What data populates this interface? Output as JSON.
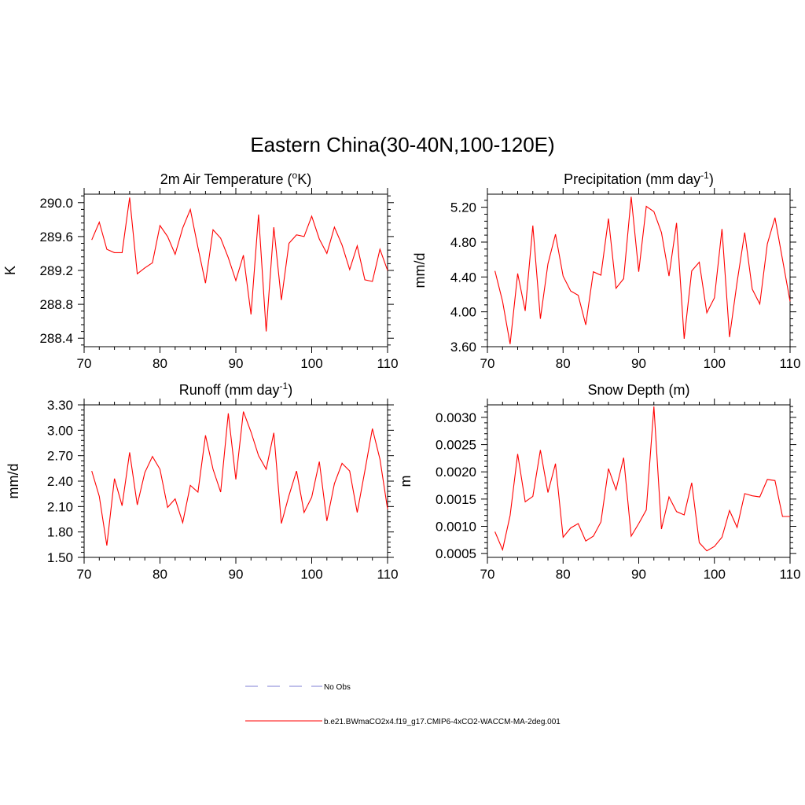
{
  "figure_title": "Eastern China(30-40N,100-120E)",
  "legend": {
    "obs_label": "No Obs",
    "obs_color": "#9999dd",
    "model_label": "b.e21.BWmaCO2x4.f19_g17.CMIP6-4xCO2-WACCM-MA-2deg.001",
    "model_color": "#ff0000"
  },
  "chart_data": [
    {
      "type": "line",
      "title_main": "2m Air Temperature (",
      "title_sup": "o",
      "title_tail": "K)",
      "ylabel": "K",
      "xlabel": "",
      "xlim": [
        70,
        110
      ],
      "ylim": [
        288.3,
        290.1
      ],
      "xticks": [
        70,
        80,
        90,
        100,
        110
      ],
      "yticks": [
        288.4,
        288.8,
        289.2,
        289.6,
        290.0
      ],
      "ytick_labels": [
        "288.4",
        "288.8",
        "289.2",
        "289.6",
        "290.0"
      ],
      "series": [
        {
          "name": "b.e21.BWmaCO2x4.f19_g17.CMIP6-4xCO2-WACCM-MA-2deg.001",
          "x": [
            71,
            72,
            73,
            74,
            75,
            76,
            77,
            78,
            79,
            80,
            81,
            82,
            83,
            84,
            85,
            86,
            87,
            88,
            89,
            90,
            91,
            92,
            93,
            94,
            95,
            96,
            97,
            98,
            99,
            100,
            101,
            102,
            103,
            104,
            105,
            106,
            107,
            108,
            109,
            110
          ],
          "y": [
            289.56,
            289.77,
            289.45,
            289.41,
            289.41,
            290.06,
            289.16,
            289.23,
            289.29,
            289.73,
            289.6,
            289.39,
            289.7,
            289.92,
            289.47,
            289.05,
            289.68,
            289.58,
            289.35,
            289.08,
            289.38,
            288.68,
            289.86,
            288.48,
            289.71,
            288.85,
            289.52,
            289.62,
            289.6,
            289.84,
            289.57,
            289.4,
            289.71,
            289.5,
            289.21,
            289.49,
            289.09,
            289.07,
            289.45,
            289.2
          ]
        }
      ]
    },
    {
      "type": "line",
      "title_main": "Precipitation (mm day",
      "title_sup": "-1",
      "title_tail": ")",
      "ylabel": "mm/d",
      "xlabel": "",
      "xlim": [
        70,
        110
      ],
      "ylim": [
        3.6,
        5.35
      ],
      "xticks": [
        70,
        80,
        90,
        100,
        110
      ],
      "yticks": [
        3.6,
        4.0,
        4.4,
        4.8,
        5.2
      ],
      "ytick_labels": [
        "3.60",
        "4.00",
        "4.40",
        "4.80",
        "5.20"
      ],
      "series": [
        {
          "name": "b.e21.BWmaCO2x4.f19_g17.CMIP6-4xCO2-WACCM-MA-2deg.001",
          "x": [
            71,
            72,
            73,
            74,
            75,
            76,
            77,
            78,
            79,
            80,
            81,
            82,
            83,
            84,
            85,
            86,
            87,
            88,
            89,
            90,
            91,
            92,
            93,
            94,
            95,
            96,
            97,
            98,
            99,
            100,
            101,
            102,
            103,
            104,
            105,
            106,
            107,
            108,
            109,
            110
          ],
          "y": [
            4.47,
            4.12,
            3.63,
            4.44,
            4.01,
            4.99,
            3.92,
            4.55,
            4.89,
            4.41,
            4.24,
            4.19,
            3.85,
            4.46,
            4.42,
            5.07,
            4.27,
            4.38,
            5.32,
            4.46,
            5.21,
            5.15,
            4.91,
            4.41,
            5.02,
            3.69,
            4.47,
            4.57,
            3.99,
            4.16,
            4.95,
            3.71,
            4.34,
            4.91,
            4.26,
            4.09,
            4.78,
            5.08,
            4.6,
            4.12
          ]
        }
      ]
    },
    {
      "type": "line",
      "title_main": "Runoff (mm day",
      "title_sup": "-1",
      "title_tail": ")",
      "ylabel": "mm/d",
      "xlabel": "",
      "xlim": [
        70,
        110
      ],
      "ylim": [
        1.5,
        3.3
      ],
      "xticks": [
        70,
        80,
        90,
        100,
        110
      ],
      "yticks": [
        1.5,
        1.8,
        2.1,
        2.4,
        2.7,
        3.0,
        3.3
      ],
      "ytick_labels": [
        "1.50",
        "1.80",
        "2.10",
        "2.40",
        "2.70",
        "3.00",
        "3.30"
      ],
      "series": [
        {
          "name": "b.e21.BWmaCO2x4.f19_g17.CMIP6-4xCO2-WACCM-MA-2deg.001",
          "x": [
            71,
            72,
            73,
            74,
            75,
            76,
            77,
            78,
            79,
            80,
            81,
            82,
            83,
            84,
            85,
            86,
            87,
            88,
            89,
            90,
            91,
            92,
            93,
            94,
            95,
            96,
            97,
            98,
            99,
            100,
            101,
            102,
            103,
            104,
            105,
            106,
            107,
            108,
            109,
            110
          ],
          "y": [
            2.52,
            2.22,
            1.64,
            2.43,
            2.11,
            2.74,
            2.12,
            2.5,
            2.69,
            2.54,
            2.09,
            2.19,
            1.91,
            2.35,
            2.27,
            2.94,
            2.54,
            2.27,
            3.2,
            2.42,
            3.22,
            2.98,
            2.7,
            2.54,
            2.97,
            1.9,
            2.23,
            2.52,
            2.03,
            2.21,
            2.63,
            1.93,
            2.37,
            2.61,
            2.52,
            2.03,
            2.52,
            3.02,
            2.66,
            2.07
          ]
        }
      ]
    },
    {
      "type": "line",
      "title_main": "Snow Depth (m)",
      "title_sup": "",
      "title_tail": "",
      "ylabel": "m",
      "xlabel": "",
      "xlim": [
        70,
        110
      ],
      "ylim": [
        0.00043,
        0.00323
      ],
      "xticks": [
        70,
        80,
        90,
        100,
        110
      ],
      "yticks": [
        0.0005,
        0.001,
        0.0015,
        0.002,
        0.0025,
        0.003
      ],
      "ytick_labels": [
        "0.0005",
        "0.0010",
        "0.0015",
        "0.0020",
        "0.0025",
        "0.0030"
      ],
      "series": [
        {
          "name": "b.e21.BWmaCO2x4.f19_g17.CMIP6-4xCO2-WACCM-MA-2deg.001",
          "x": [
            71,
            72,
            73,
            74,
            75,
            76,
            77,
            78,
            79,
            80,
            81,
            82,
            83,
            84,
            85,
            86,
            87,
            88,
            89,
            90,
            91,
            92,
            93,
            94,
            95,
            96,
            97,
            98,
            99,
            100,
            101,
            102,
            103,
            104,
            105,
            106,
            107,
            108,
            109,
            110
          ],
          "y": [
            0.0009,
            0.00057,
            0.0012,
            0.00233,
            0.00145,
            0.00155,
            0.0024,
            0.00162,
            0.00215,
            0.0008,
            0.00097,
            0.00105,
            0.00073,
            0.00082,
            0.00108,
            0.00206,
            0.00167,
            0.00226,
            0.00082,
            0.00105,
            0.0013,
            0.0032,
            0.00095,
            0.00154,
            0.00127,
            0.00121,
            0.0018,
            0.0007,
            0.00055,
            0.00063,
            0.0008,
            0.00129,
            0.00098,
            0.0016,
            0.00156,
            0.00154,
            0.00186,
            0.00184,
            0.00118,
            0.00118
          ]
        }
      ]
    }
  ]
}
